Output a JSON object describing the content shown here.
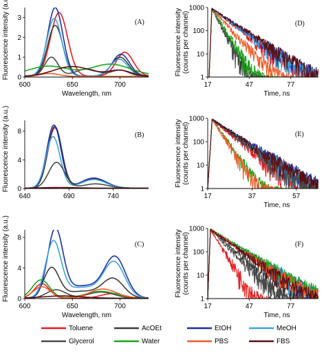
{
  "legend": [
    {
      "name": "Toluene",
      "color": "#e8191c"
    },
    {
      "name": "AcOEt",
      "color": "#3a3a3a"
    },
    {
      "name": "EtOH",
      "color": "#1c2fa3"
    },
    {
      "name": "MeOH",
      "color": "#3ba4de"
    },
    {
      "name": "Glycerol",
      "color": "#4a4a4a"
    },
    {
      "name": "Water",
      "color": "#19a319"
    },
    {
      "name": "PBS",
      "color": "#f05a24"
    },
    {
      "name": "FBS",
      "color": "#5a0f12"
    }
  ],
  "chart_data": [
    {
      "id": "A",
      "type": "line",
      "label": "(A)",
      "xlabel": "Wavelength, nm",
      "ylabel": "Fluorescence intensity (a.u.)",
      "xlim": [
        600,
        730
      ],
      "ylim": [
        0,
        3.5
      ],
      "xticks": [
        600,
        650,
        700
      ],
      "yticks": [
        0,
        1,
        2,
        3
      ],
      "series": [
        {
          "name": "Toluene",
          "color": "#e8191c",
          "peaks": [
            [
              636,
              3.2,
              9
            ],
            [
              705,
              1.2,
              9
            ]
          ],
          "base": 0.05
        },
        {
          "name": "AcOEt",
          "color": "#3a3a3a",
          "peaks": [
            [
              632,
              2.55,
              8
            ],
            [
              700,
              0.95,
              9
            ]
          ],
          "base": 0.05
        },
        {
          "name": "EtOH",
          "color": "#1c2fa3",
          "peaks": [
            [
              632,
              3.45,
              8
            ],
            [
              701,
              1.1,
              9
            ]
          ],
          "base": 0.05
        },
        {
          "name": "MeOH",
          "color": "#3ba4de",
          "peaks": [
            [
              631,
              2.9,
              8
            ],
            [
              699,
              0.85,
              9
            ]
          ],
          "base": 0.05
        },
        {
          "name": "Glycerol",
          "color": "#4a4a4a",
          "peaks": [
            [
              628,
              0.95,
              7
            ],
            [
              665,
              0.35,
              12
            ],
            [
              700,
              0.3,
              9
            ]
          ],
          "base": 0.05
        },
        {
          "name": "Water",
          "color": "#19a319",
          "peaks": [
            [
              625,
              0.45,
              20
            ],
            [
              690,
              0.55,
              20
            ]
          ],
          "base": 0.1
        },
        {
          "name": "PBS",
          "color": "#f05a24",
          "peaks": [
            [
              626,
              0.15,
              10
            ]
          ],
          "base": 0.03
        },
        {
          "name": "FBS",
          "color": "#5a0f12",
          "peaks": [
            [
              650,
              0.5,
              20
            ],
            [
              700,
              0.3,
              12
            ]
          ],
          "base": 0.03
        }
      ]
    },
    {
      "id": "D",
      "type": "line",
      "label": "(D)",
      "yscale": "log",
      "xlabel": "Time, ns",
      "ylabel": "Fluorescence intensity (counts per channel)",
      "xlim": [
        17,
        97
      ],
      "ylim": [
        1,
        1000
      ],
      "xticks": [
        17,
        47,
        77
      ],
      "yticks": [
        1,
        10,
        100,
        1000
      ],
      "t0": 20,
      "series": [
        {
          "name": "Toluene",
          "color": "#e8191c",
          "tau": 9.5
        },
        {
          "name": "AcOEt",
          "color": "#3a3a3a",
          "tau": 4.0
        },
        {
          "name": "EtOH",
          "color": "#1c2fa3",
          "tau": 10.8
        },
        {
          "name": "MeOH",
          "color": "#3ba4de",
          "tau": 10.2
        },
        {
          "name": "Glycerol",
          "color": "#4a4a4a",
          "tau": 3.8
        },
        {
          "name": "Water",
          "color": "#19a319",
          "tau": 4.6
        },
        {
          "name": "PBS",
          "color": "#f05a24",
          "tau": 6.6
        },
        {
          "name": "FBS",
          "color": "#5a0f12",
          "tau": 11.0
        }
      ]
    },
    {
      "id": "B",
      "type": "line",
      "label": "(B)",
      "xlabel": "",
      "ylabel": "Fluorescence intensity (a.u.)",
      "xlim": [
        640,
        780
      ],
      "ylim": [
        0,
        9.5
      ],
      "xticks": [
        640,
        690,
        740
      ],
      "yticks": [
        0,
        4,
        8
      ],
      "series": [
        {
          "name": "Toluene",
          "color": "#e8191c",
          "peaks": [
            [
              674,
              8.4,
              8
            ],
            [
              718,
              1.3,
              14
            ]
          ],
          "base": 0.05
        },
        {
          "name": "AcOEt",
          "color": "#3a3a3a",
          "peaks": [
            [
              674,
              8.6,
              8
            ],
            [
              718,
              1.4,
              14
            ]
          ],
          "base": 0.05
        },
        {
          "name": "EtOH",
          "color": "#1c2fa3",
          "peaks": [
            [
              673,
              8.8,
              8
            ],
            [
              718,
              1.4,
              14
            ]
          ],
          "base": 0.05
        },
        {
          "name": "MeOH",
          "color": "#3ba4de",
          "peaks": [
            [
              672,
              7.2,
              8
            ],
            [
              718,
              1.2,
              14
            ]
          ],
          "base": 0.05
        },
        {
          "name": "Glycerol",
          "color": "#4a4a4a",
          "peaks": [
            [
              676,
              3.6,
              9
            ],
            [
              720,
              0.6,
              14
            ]
          ],
          "base": 0.05
        },
        {
          "name": "Water",
          "color": "#19a319",
          "peaks": [
            [
              680,
              0.08,
              20
            ]
          ],
          "base": 0.03
        },
        {
          "name": "PBS",
          "color": "#f05a24",
          "peaks": [
            [
              680,
              0.06,
              20
            ]
          ],
          "base": 0.03
        },
        {
          "name": "FBS",
          "color": "#5a0f12",
          "peaks": [
            [
              680,
              0.1,
              20
            ]
          ],
          "base": 0.04
        }
      ]
    },
    {
      "id": "E",
      "type": "line",
      "label": "(E)",
      "yscale": "log",
      "xlabel": "Time, ns",
      "ylabel": "Fluorescence intensity (counts per channel)",
      "xlim": [
        17,
        67
      ],
      "ylim": [
        1,
        1000
      ],
      "xticks": [
        17,
        37,
        57
      ],
      "yticks": [
        1,
        10,
        100,
        1000
      ],
      "t0": 19,
      "series": [
        {
          "name": "Toluene",
          "color": "#e8191c",
          "tau": 5.6
        },
        {
          "name": "AcOEt",
          "color": "#3a3a3a",
          "tau": 6.6
        },
        {
          "name": "EtOH",
          "color": "#1c2fa3",
          "tau": 7.2
        },
        {
          "name": "MeOH",
          "color": "#3ba4de",
          "tau": 6.7
        },
        {
          "name": "Glycerol",
          "color": "#4a4a4a",
          "tau": 6.3
        },
        {
          "name": "Water",
          "color": "#19a319",
          "tau": 3.2
        },
        {
          "name": "PBS",
          "color": "#f05a24",
          "tau": 3.0
        },
        {
          "name": "FBS",
          "color": "#5a0f12",
          "tau": 6.9
        }
      ]
    },
    {
      "id": "C",
      "type": "line",
      "label": "(C)",
      "xlabel": "Wavelength, nm",
      "ylabel": "Fluorescence intensity (a.u.)",
      "xlim": [
        600,
        730
      ],
      "ylim": [
        0,
        9
      ],
      "xticks": [
        600,
        650,
        700
      ],
      "yticks": [
        0,
        4,
        8
      ],
      "series": [
        {
          "name": "Toluene",
          "color": "#e8191c",
          "peaks": [
            [
              618,
              1.9,
              8
            ],
            [
              692,
              0.6,
              12
            ]
          ],
          "base": 0.05
        },
        {
          "name": "AcOEt",
          "color": "#3a3a3a",
          "peaks": [
            [
              628,
              3.8,
              8
            ],
            [
              693,
              2.4,
              11
            ],
            [
              660,
              0.9,
              20
            ]
          ],
          "base": 0.05
        },
        {
          "name": "EtOH",
          "color": "#1c2fa3",
          "peaks": [
            [
              632,
              8.7,
              8
            ],
            [
              695,
              5.1,
              11
            ],
            [
              662,
              1.6,
              20
            ]
          ],
          "base": 0.05
        },
        {
          "name": "MeOH",
          "color": "#3ba4de",
          "peaks": [
            [
              630,
              7.1,
              8
            ],
            [
              694,
              4.5,
              11
            ],
            [
              660,
              1.4,
              20
            ]
          ],
          "base": 0.05
        },
        {
          "name": "Glycerol",
          "color": "#4a4a4a",
          "peaks": [
            [
              633,
              1.1,
              10
            ],
            [
              680,
              0.8,
              14
            ]
          ],
          "base": 0.05
        },
        {
          "name": "Water",
          "color": "#19a319",
          "peaks": [
            [
              617,
              2.4,
              9
            ],
            [
              680,
              0.9,
              16
            ]
          ],
          "base": 0.05
        },
        {
          "name": "PBS",
          "color": "#f05a24",
          "peaks": [
            [
              618,
              1.5,
              9
            ],
            [
              682,
              1.2,
              14
            ]
          ],
          "base": 0.05
        },
        {
          "name": "FBS",
          "color": "#5a0f12",
          "peaks": [
            [
              640,
              0.3,
              20
            ]
          ],
          "base": 0.05
        }
      ]
    },
    {
      "id": "F",
      "type": "line",
      "label": "(F)",
      "yscale": "log",
      "xlabel": "Time, ns",
      "ylabel": "Fluorescence intensity (counts per channel)",
      "xlim": [
        17,
        97
      ],
      "ylim": [
        1,
        1000
      ],
      "xticks": [
        17,
        47,
        77
      ],
      "yticks": [
        1,
        10,
        100,
        1000
      ],
      "t0": 19,
      "series": [
        {
          "name": "Toluene",
          "color": "#e8191c",
          "tau": 4.6
        },
        {
          "name": "AcOEt",
          "color": "#3a3a3a",
          "tau": 8.5
        },
        {
          "name": "EtOH",
          "color": "#1c2fa3",
          "tau": 11.5
        },
        {
          "name": "MeOH",
          "color": "#3ba4de",
          "tau": 11.5
        },
        {
          "name": "Glycerol",
          "color": "#4a4a4a",
          "tau": 7.2
        },
        {
          "name": "Water",
          "color": "#19a319",
          "tau": 12.0
        },
        {
          "name": "PBS",
          "color": "#f05a24",
          "tau": 11.0
        },
        {
          "name": "FBS",
          "color": "#5a0f12",
          "tau": 10.5
        }
      ]
    }
  ]
}
